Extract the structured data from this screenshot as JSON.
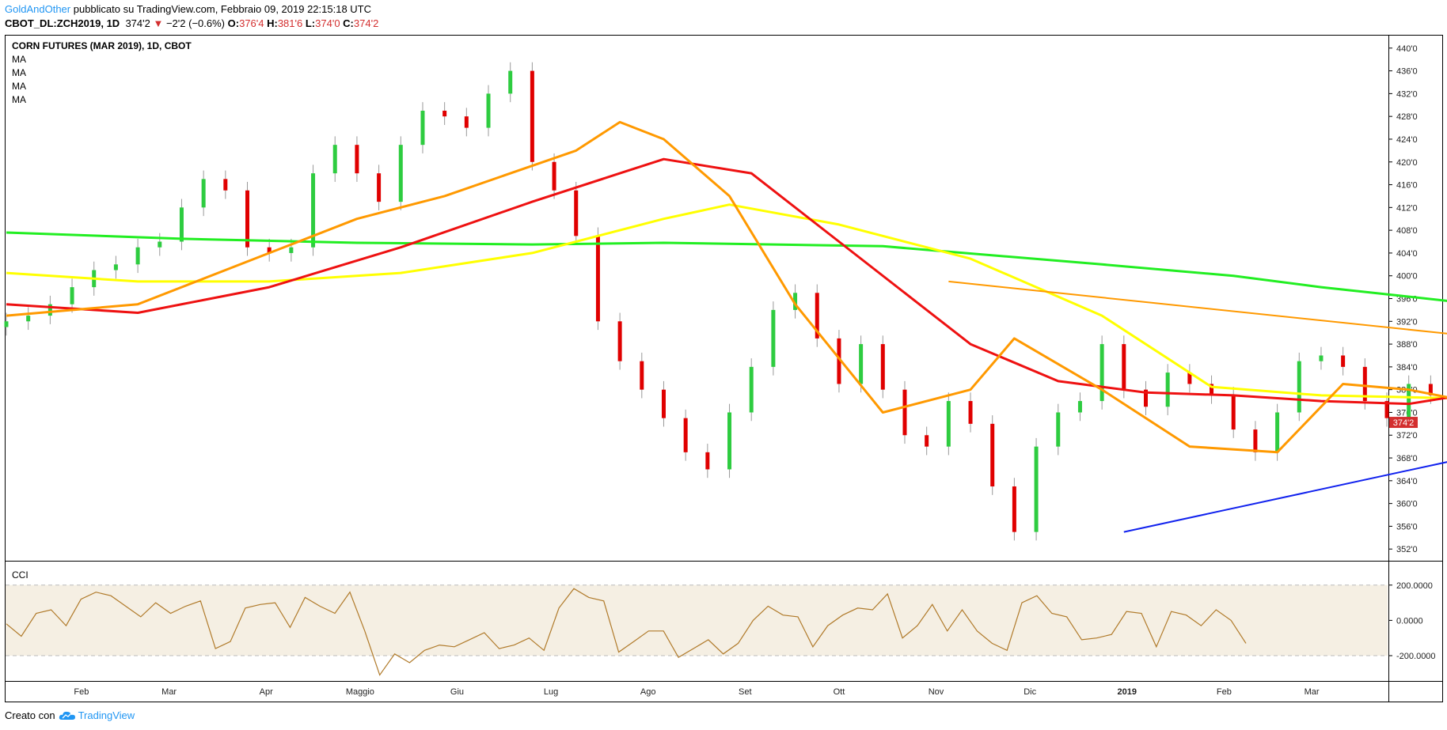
{
  "header": {
    "author": "GoldAndOther",
    "published_text": "pubblicato su TradingView.com, Febbraio 09, 2019 22:15:18 UTC"
  },
  "ohlc": {
    "symbol": "CBOT_DL:ZCH2019, 1D",
    "last": "374'2",
    "change": "−2'2 (−0.6%)",
    "o_label": "O:",
    "o": "376'4",
    "h_label": "H:",
    "h": "381'6",
    "l_label": "L:",
    "l": "374'0",
    "c_label": "C:",
    "c": "374'2"
  },
  "chart_title": "CORN FUTURES (MAR 2019), 1D, CBOT",
  "ma_labels": [
    "MA",
    "MA",
    "MA",
    "MA"
  ],
  "cci_label": "CCI",
  "footer": {
    "created_with": "Creato con",
    "brand": "TradingView"
  },
  "colors": {
    "up": "#2ecc40",
    "down": "#e00000",
    "wick": "#999999",
    "ma_green": "#22ee22",
    "ma_yellow": "#ffff00",
    "ma_red": "#ee1111",
    "ma_orange": "#ff9900",
    "trend_blue": "#1122ee",
    "trend_orange": "#ff9900",
    "cci_line": "#b07a2a",
    "cci_band": "#f5efe3",
    "last_price_bg": "#d32f2f"
  },
  "chart_data": [
    {
      "type": "candlestick",
      "title": "CORN FUTURES (MAR 2019), 1D, CBOT",
      "y_ticks": [
        "440'0",
        "436'0",
        "432'0",
        "428'0",
        "424'0",
        "420'0",
        "416'0",
        "412'0",
        "408'0",
        "404'0",
        "400'0",
        "396'0",
        "392'0",
        "388'0",
        "384'0",
        "380'0",
        "376'0",
        "372'0",
        "368'0",
        "364'0",
        "360'0",
        "356'0",
        "352'0"
      ],
      "ylim": [
        350.5,
        441.5
      ],
      "x_ticks": [
        "Feb",
        "Mar",
        "Apr",
        "Maggio",
        "Giu",
        "Lug",
        "Ago",
        "Set",
        "Ott",
        "Nov",
        "Dic",
        "2019",
        "Feb",
        "Mar"
      ],
      "last_price_label": "374'2",
      "price_points": [
        [
          "2018-01-08",
          392.0
        ],
        [
          "2018-01-15",
          393.0
        ],
        [
          "2018-01-22",
          395.0
        ],
        [
          "2018-01-29",
          398.0
        ],
        [
          "2018-02-05",
          401.0
        ],
        [
          "2018-02-12",
          402.0
        ],
        [
          "2018-02-19",
          405.0
        ],
        [
          "2018-02-26",
          406.0
        ],
        [
          "2018-03-05",
          412.0
        ],
        [
          "2018-03-12",
          417.0
        ],
        [
          "2018-03-19",
          415.0
        ],
        [
          "2018-03-26",
          405.0
        ],
        [
          "2018-04-02",
          404.0
        ],
        [
          "2018-04-09",
          405.0
        ],
        [
          "2018-04-16",
          418.0
        ],
        [
          "2018-04-23",
          423.0
        ],
        [
          "2018-04-30",
          418.0
        ],
        [
          "2018-05-07",
          413.0
        ],
        [
          "2018-05-14",
          423.0
        ],
        [
          "2018-05-21",
          429.0
        ],
        [
          "2018-05-28",
          428.0
        ],
        [
          "2018-06-04",
          426.0
        ],
        [
          "2018-06-11",
          432.0
        ],
        [
          "2018-06-18",
          436.0
        ],
        [
          "2018-06-25",
          420.0
        ],
        [
          "2018-07-02",
          415.0
        ],
        [
          "2018-07-09",
          407.0
        ],
        [
          "2018-07-16",
          392.0
        ],
        [
          "2018-07-23",
          385.0
        ],
        [
          "2018-07-30",
          380.0
        ],
        [
          "2018-08-06",
          375.0
        ],
        [
          "2018-08-13",
          369.0
        ],
        [
          "2018-08-20",
          366.0
        ],
        [
          "2018-08-27",
          376.0
        ],
        [
          "2018-09-03",
          384.0
        ],
        [
          "2018-09-10",
          394.0
        ],
        [
          "2018-09-17",
          397.0
        ],
        [
          "2018-09-24",
          389.0
        ],
        [
          "2018-10-01",
          381.0
        ],
        [
          "2018-10-08",
          388.0
        ],
        [
          "2018-10-15",
          380.0
        ],
        [
          "2018-10-22",
          372.0
        ],
        [
          "2018-10-29",
          370.0
        ],
        [
          "2018-11-05",
          378.0
        ],
        [
          "2018-11-12",
          374.0
        ],
        [
          "2018-11-19",
          363.0
        ],
        [
          "2018-11-26",
          355.0
        ],
        [
          "2018-12-03",
          370.0
        ],
        [
          "2018-12-10",
          376.0
        ],
        [
          "2018-12-17",
          378.0
        ],
        [
          "2018-12-24",
          388.0
        ],
        [
          "2018-12-31",
          380.0
        ],
        [
          "2019-01-07",
          377.0
        ],
        [
          "2019-01-14",
          383.0
        ],
        [
          "2019-01-21",
          381.0
        ],
        [
          "2019-01-28",
          379.0
        ],
        [
          "2019-02-04",
          373.0
        ],
        [
          "2019-02-11",
          369.0
        ],
        [
          "2019-02-18",
          376.0
        ],
        [
          "2019-02-25",
          385.0
        ],
        [
          "2019-03-04",
          386.0
        ],
        [
          "2019-03-11",
          384.0
        ],
        [
          "2019-03-18",
          378.0
        ],
        [
          "2019-03-25",
          375.0
        ],
        [
          "2019-04-01",
          381.0
        ],
        [
          "2019-04-08",
          379.0
        ],
        [
          "2019-04-15",
          377.0
        ],
        [
          "2019-04-22",
          380.0
        ],
        [
          "2019-04-29",
          378.0
        ],
        [
          "2019-05-06",
          376.0
        ]
      ],
      "series": [
        {
          "name": "MA",
          "color": "#22ee22",
          "points": [
            [
              0,
              407.6
            ],
            [
              8,
              406.5
            ],
            [
              16,
              405.8
            ],
            [
              24,
              405.5
            ],
            [
              30,
              405.8
            ],
            [
              40,
              405.2
            ],
            [
              50,
              402.0
            ],
            [
              56,
              400.0
            ],
            [
              60,
              398.0
            ],
            [
              66,
              395.5
            ],
            [
              70,
              393.0
            ],
            [
              72,
              390.5
            ],
            [
              74,
              387.0
            ]
          ]
        },
        {
          "name": "MA",
          "color": "#ffff00",
          "points": [
            [
              0,
              400.5
            ],
            [
              6,
              399.0
            ],
            [
              12,
              399.0
            ],
            [
              18,
              400.5
            ],
            [
              24,
              404.0
            ],
            [
              30,
              410.0
            ],
            [
              33,
              412.5
            ],
            [
              38,
              409.0
            ],
            [
              44,
              403.0
            ],
            [
              50,
              393.0
            ],
            [
              55,
              380.5
            ],
            [
              60,
              379.0
            ],
            [
              66,
              378.5
            ],
            [
              70,
              377.0
            ],
            [
              73,
              378.0
            ],
            [
              75,
              377.5
            ]
          ]
        },
        {
          "name": "MA",
          "color": "#ee1111",
          "points": [
            [
              0,
              395.0
            ],
            [
              6,
              393.5
            ],
            [
              12,
              398.0
            ],
            [
              18,
              405.0
            ],
            [
              24,
              413.0
            ],
            [
              28,
              418.0
            ],
            [
              30,
              420.5
            ],
            [
              34,
              418.0
            ],
            [
              38,
              406.0
            ],
            [
              44,
              388.0
            ],
            [
              48,
              381.5
            ],
            [
              52,
              379.5
            ],
            [
              56,
              379.0
            ],
            [
              60,
              378.0
            ],
            [
              64,
              377.5
            ],
            [
              68,
              380.0
            ],
            [
              72,
              379.5
            ],
            [
              75,
              378.5
            ]
          ]
        },
        {
          "name": "MA",
          "color": "#ff9900",
          "points": [
            [
              0,
              393.0
            ],
            [
              6,
              395.0
            ],
            [
              12,
              404.0
            ],
            [
              16,
              410.0
            ],
            [
              20,
              414.0
            ],
            [
              26,
              422.0
            ],
            [
              28,
              427.0
            ],
            [
              30,
              424.0
            ],
            [
              33,
              414.0
            ],
            [
              36,
              395.0
            ],
            [
              40,
              376.0
            ],
            [
              44,
              380.0
            ],
            [
              46,
              389.0
            ],
            [
              50,
              380.0
            ],
            [
              54,
              370.0
            ],
            [
              58,
              369.0
            ],
            [
              61,
              381.0
            ],
            [
              64,
              380.0
            ],
            [
              68,
              377.0
            ],
            [
              72,
              380.0
            ],
            [
              75,
              379.0
            ]
          ]
        }
      ],
      "trendlines": [
        {
          "color": "#1122ee",
          "from": [
            51,
            355.0
          ],
          "to": [
            84,
            382.5
          ]
        },
        {
          "color": "#ff9900",
          "from": [
            43,
            399.0
          ],
          "to": [
            84,
            382.5
          ]
        }
      ]
    },
    {
      "type": "line",
      "title": "CCI",
      "y_ticks": [
        "200.0000",
        "0.0000",
        "-200.0000"
      ],
      "ylim": [
        -330,
        320
      ],
      "band": [
        -200,
        200
      ],
      "values": [
        -20,
        -90,
        40,
        60,
        -30,
        120,
        160,
        140,
        80,
        20,
        100,
        40,
        80,
        110,
        -160,
        -120,
        70,
        90,
        100,
        -40,
        130,
        80,
        40,
        160,
        -60,
        -310,
        -190,
        -240,
        -170,
        -140,
        -150,
        -110,
        -70,
        -160,
        -140,
        -100,
        -170,
        70,
        180,
        130,
        110,
        -180,
        -120,
        -60,
        -60,
        -210,
        -160,
        -110,
        -190,
        -130,
        0,
        80,
        30,
        20,
        -150,
        -30,
        30,
        70,
        60,
        150,
        -100,
        -30,
        90,
        -60,
        60,
        -60,
        -130,
        -170,
        100,
        140,
        40,
        20,
        -110,
        -100,
        -80,
        50,
        40,
        -150,
        50,
        30,
        -30,
        60,
        0,
        -130
      ]
    }
  ]
}
